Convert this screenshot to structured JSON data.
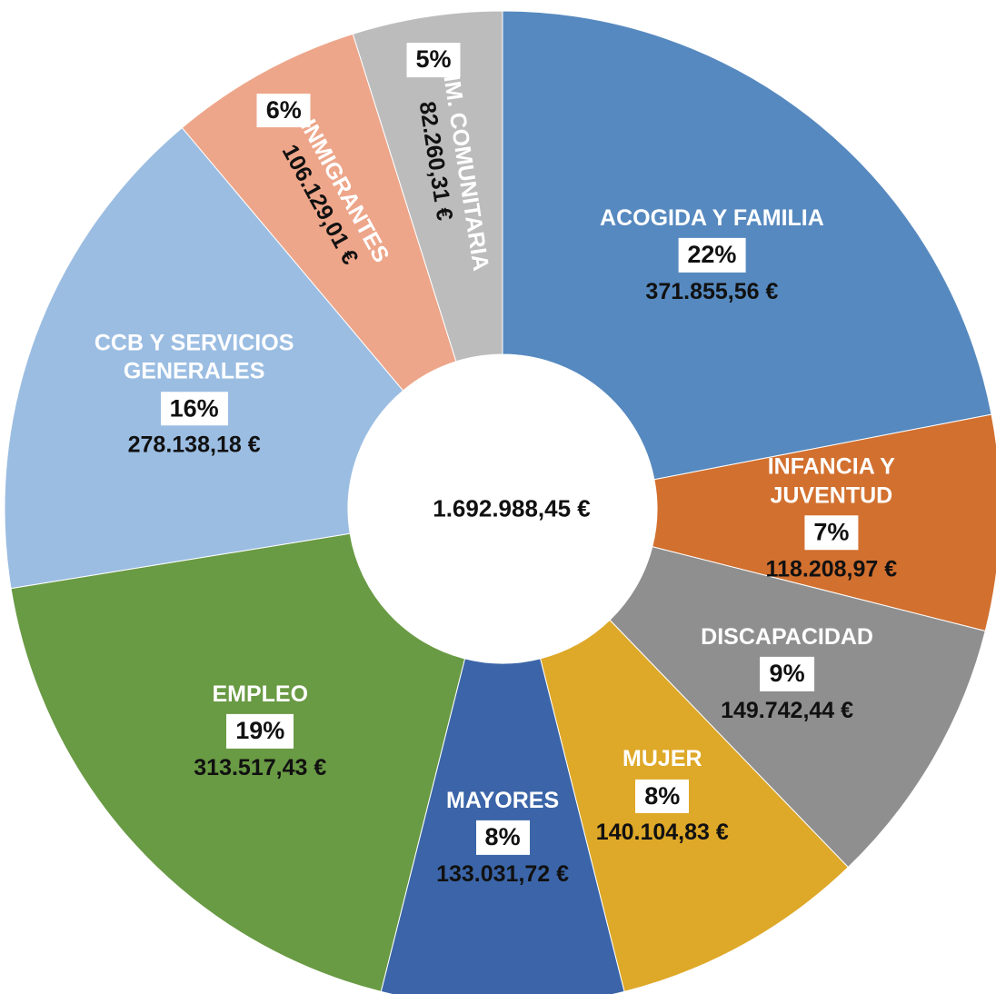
{
  "chart_data": {
    "type": "donut",
    "categories": [
      "ACOGIDA Y FAMILIA",
      "INFANCIA Y JUVENTUD",
      "DISCAPACIDAD",
      "MUJER",
      "MAYORES",
      "EMPLEO",
      "CCB Y SERVICIOS GENERALES",
      "INMIGRANTES",
      "ANIM. COMUNITARIA"
    ],
    "values": [
      371855.56,
      118208.97,
      149742.44,
      140104.83,
      133031.72,
      313517.43,
      278138.18,
      106129.01,
      82260.31
    ],
    "value_labels": [
      "371.855,56 €",
      "118.208,97 €",
      "149.742,44 €",
      "140.104,83 €",
      "133.031,72 €",
      "313.517,43 €",
      "278.138,18 €",
      "106.129,01 €",
      "82.260,31 €"
    ],
    "percent_labels": [
      "22%",
      "7%",
      "9%",
      "8%",
      "8%",
      "19%",
      "16%",
      "6%",
      "5%"
    ],
    "colors": [
      "#5689bf",
      "#d2702f",
      "#8f8f8f",
      "#dea828",
      "#3b65a8",
      "#699a44",
      "#9bbde2",
      "#eda68a",
      "#bcbcbc"
    ],
    "center_label": "1.692.988,45 €"
  }
}
